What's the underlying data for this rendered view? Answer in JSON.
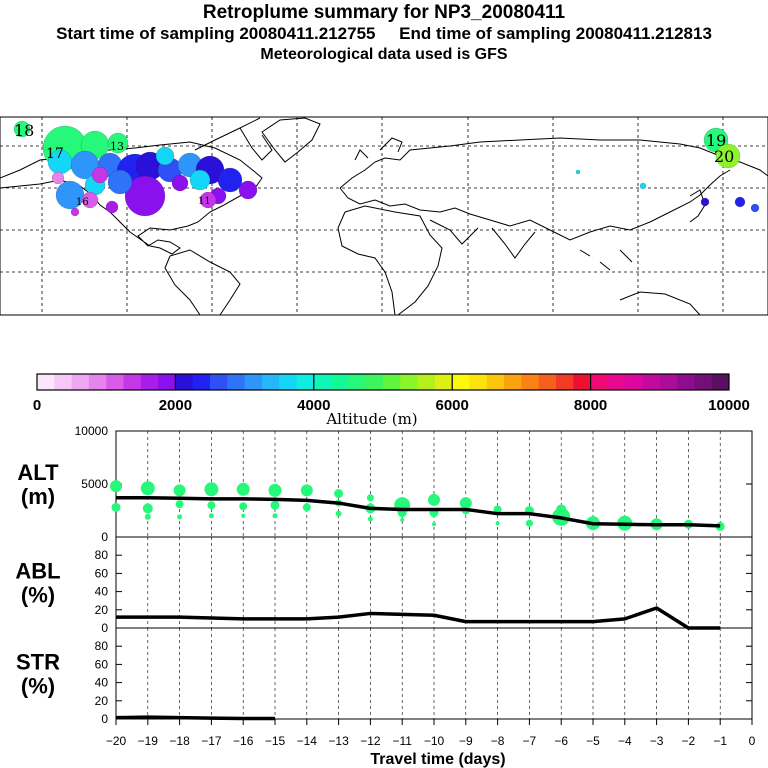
{
  "header": {
    "title": "Retroplume summary for NP3_20080411",
    "start_label": "Start time of sampling 20080411.212755",
    "end_label": "End time of sampling 20080411.212813",
    "met_label": "Meteorological data used is GFS"
  },
  "colorbar": {
    "label": "Altitude (m)",
    "ticks": [
      "0",
      "2000",
      "4000",
      "6000",
      "8000",
      "10000"
    ],
    "colors": [
      "#fbe6fb",
      "#f5c8f5",
      "#eea8f0",
      "#e585ec",
      "#d95ce8",
      "#c636e6",
      "#a81ee6",
      "#8a10ee",
      "#2a10d8",
      "#2222f0",
      "#2f50f5",
      "#2f73f8",
      "#2e95fb",
      "#26b7fb",
      "#14d6f6",
      "#10ece2",
      "#0ef7b7",
      "#12f996",
      "#26f87a",
      "#3ef45c",
      "#5ff53f",
      "#8cf42b",
      "#b5ef1c",
      "#dbf015",
      "#fbf80c",
      "#fbe40c",
      "#fbc60c",
      "#fba30e",
      "#f98116",
      "#f65f1e",
      "#f23a26",
      "#ee1030",
      "#f00a73",
      "#e8088d",
      "#da089c",
      "#c40a9e",
      "#ac0c98",
      "#8f0c8e",
      "#721076",
      "#5a1060"
    ]
  },
  "map": {
    "labels": [
      "18",
      "17",
      "19",
      "20",
      "13",
      "11",
      "16"
    ]
  },
  "chart_data": [
    {
      "type": "line",
      "panel": "ALT",
      "ylabel": "ALT\n(m)",
      "ylim": [
        0,
        10000
      ],
      "yticks": [
        0,
        5000,
        10000
      ],
      "x": [
        -20,
        -19,
        -18,
        -17,
        -16,
        -15,
        -14,
        -13,
        -12,
        -11,
        -10,
        -9,
        -8,
        -7,
        -6,
        -5,
        -4,
        -3,
        -2,
        -1
      ],
      "series": [
        {
          "name": "mean altitude",
          "values": [
            3700,
            3700,
            3650,
            3600,
            3600,
            3550,
            3450,
            3200,
            2700,
            2600,
            2600,
            2600,
            2200,
            2200,
            1800,
            1250,
            1200,
            1150,
            1150,
            1050
          ]
        }
      ],
      "scatter": {
        "color": "#26f87a",
        "points": [
          [
            -20,
            4800,
            12
          ],
          [
            -20,
            2800,
            9
          ],
          [
            -19,
            4600,
            14
          ],
          [
            -19,
            2700,
            10
          ],
          [
            -19,
            1900,
            6
          ],
          [
            -18,
            4400,
            12
          ],
          [
            -18,
            3100,
            8
          ],
          [
            -18,
            1900,
            5
          ],
          [
            -17,
            4500,
            14
          ],
          [
            -17,
            3000,
            8
          ],
          [
            -17,
            2000,
            5
          ],
          [
            -16,
            4500,
            13
          ],
          [
            -16,
            2900,
            8
          ],
          [
            -16,
            2000,
            4
          ],
          [
            -15,
            4400,
            13
          ],
          [
            -15,
            3000,
            9
          ],
          [
            -15,
            2000,
            5
          ],
          [
            -14,
            4400,
            12
          ],
          [
            -14,
            2800,
            8
          ],
          [
            -13,
            4100,
            9
          ],
          [
            -13,
            3200,
            7
          ],
          [
            -13,
            2200,
            6
          ],
          [
            -12,
            3700,
            7
          ],
          [
            -12,
            2700,
            10
          ],
          [
            -12,
            1700,
            5
          ],
          [
            -11,
            3000,
            16
          ],
          [
            -11,
            2300,
            9
          ],
          [
            -11,
            1600,
            4
          ],
          [
            -10,
            3500,
            12
          ],
          [
            -10,
            2300,
            9
          ],
          [
            -10,
            1200,
            4
          ],
          [
            -9,
            3200,
            12
          ],
          [
            -9,
            2500,
            8
          ],
          [
            -8,
            2600,
            8
          ],
          [
            -8,
            1300,
            4
          ],
          [
            -7,
            2500,
            9
          ],
          [
            -7,
            1300,
            7
          ],
          [
            -6,
            1900,
            18
          ],
          [
            -6,
            2600,
            10
          ],
          [
            -5,
            1300,
            14
          ],
          [
            -4,
            1300,
            15
          ],
          [
            -3,
            1200,
            12
          ],
          [
            -2,
            1200,
            9
          ],
          [
            -1,
            1000,
            9
          ]
        ]
      }
    },
    {
      "type": "line",
      "panel": "ABL",
      "ylabel": "ABL\n(%)",
      "ylim": [
        0,
        100
      ],
      "yticks": [
        0,
        20,
        40,
        60,
        80
      ],
      "x": [
        -20,
        -19,
        -18,
        -17,
        -16,
        -15,
        -14,
        -13,
        -12,
        -11,
        -10,
        -9,
        -8,
        -7,
        -6,
        -5,
        -4,
        -3,
        -2,
        -1
      ],
      "series": [
        {
          "name": "ABL fraction",
          "values": [
            12,
            12,
            12,
            11,
            10,
            10,
            10,
            12,
            16,
            15,
            14,
            7,
            7,
            7,
            7,
            7,
            10,
            22,
            0,
            0
          ]
        }
      ]
    },
    {
      "type": "line",
      "panel": "STR",
      "ylabel": "STR\n(%)",
      "ylim": [
        0,
        100
      ],
      "yticks": [
        0,
        20,
        40,
        60,
        80
      ],
      "x": [
        -20,
        -19,
        -18,
        -17,
        -16,
        -15
      ],
      "series": [
        {
          "name": "stratospheric fraction",
          "values": [
            1.5,
            2,
            1.5,
            1,
            0.5,
            0.5
          ]
        }
      ]
    }
  ],
  "xaxis": {
    "ticks": [
      -20,
      -19,
      -18,
      -17,
      -16,
      -15,
      -14,
      -13,
      -12,
      -11,
      -10,
      -9,
      -8,
      -7,
      -6,
      -5,
      -4,
      -3,
      -2,
      -1,
      0
    ],
    "xlim": [
      -20,
      0
    ],
    "label": "Travel time (days)"
  }
}
